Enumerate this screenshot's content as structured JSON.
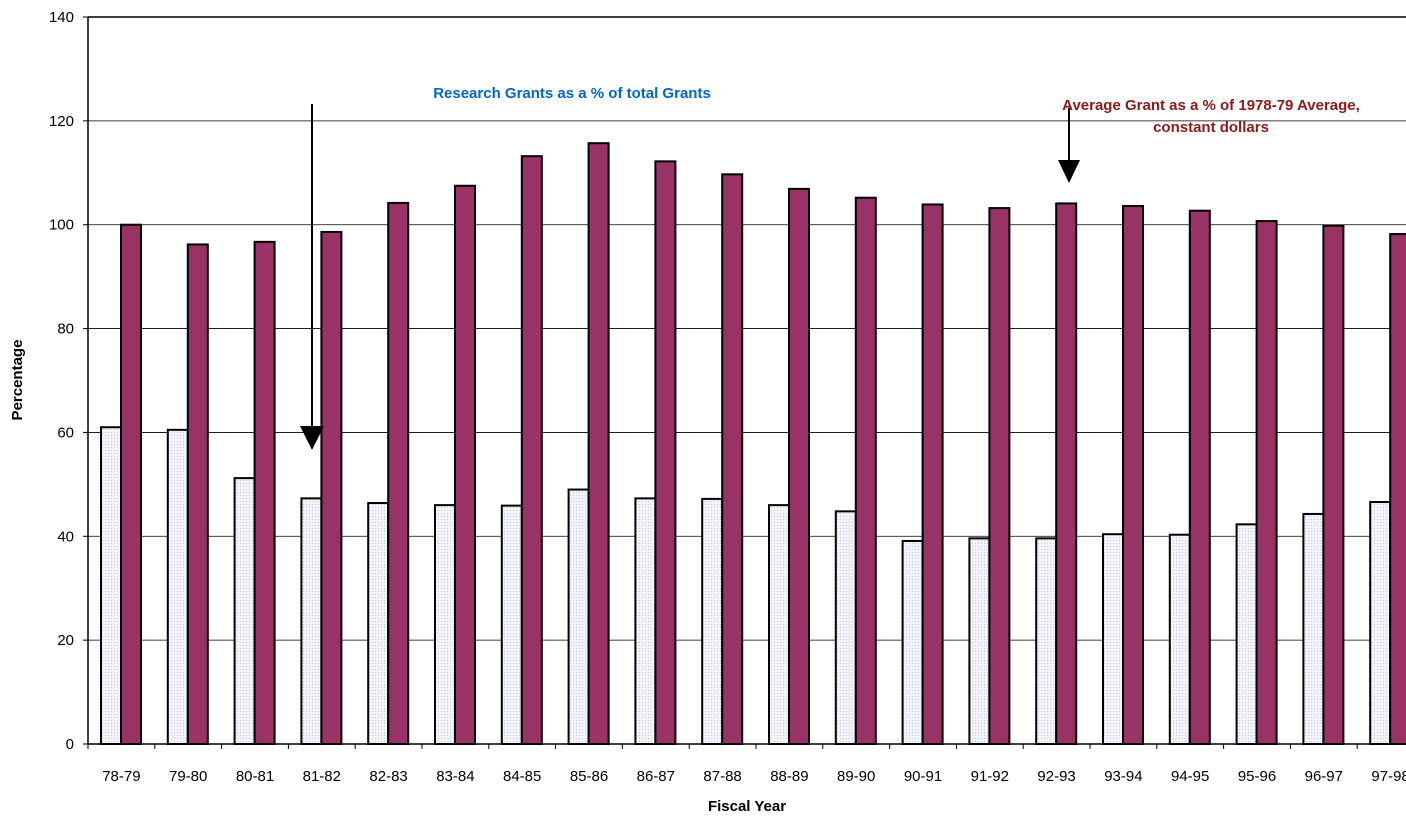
{
  "chart_data": {
    "type": "bar",
    "xlabel": "Fiscal Year",
    "ylabel": "Percentage",
    "ylim": [
      0,
      140
    ],
    "yticks": [
      0,
      20,
      40,
      60,
      80,
      100,
      120,
      140
    ],
    "grid": true,
    "categories": [
      "78-79",
      "79-80",
      "80-81",
      "81-82",
      "82-83",
      "83-84",
      "84-85",
      "85-86",
      "86-87",
      "87-88",
      "88-89",
      "89-90",
      "90-91",
      "91-92",
      "92-93",
      "93-94",
      "94-95",
      "95-96",
      "96-97",
      "97-98"
    ],
    "series": [
      {
        "name": "Research Grants as a % of total Grants",
        "color": "#f0f0fa",
        "values": [
          61,
          60.5,
          51.2,
          47.3,
          46.4,
          46,
          45.9,
          49,
          47.3,
          47.2,
          46,
          44.8,
          39.1,
          39.6,
          39.6,
          40.4,
          40.3,
          42.3,
          44.3,
          46.6
        ]
      },
      {
        "name": "Average Grant as a % of 1978-79 Average, constant dollars",
        "color": "#993366",
        "values": [
          100,
          96.2,
          96.7,
          98.6,
          104.2,
          107.5,
          113.2,
          115.7,
          112.2,
          109.7,
          106.9,
          105.2,
          103.9,
          103.2,
          104.1,
          103.6,
          102.7,
          100.7,
          99.8,
          98.2
        ]
      }
    ],
    "annotations": [
      {
        "text": "Research Grants as a % of total Grants",
        "color": "#0066cc"
      },
      {
        "text_line1": "Average Grant as a % of 1978-79 Average,",
        "text_line2": "constant dollars",
        "color": "#8b1a1a"
      }
    ]
  }
}
